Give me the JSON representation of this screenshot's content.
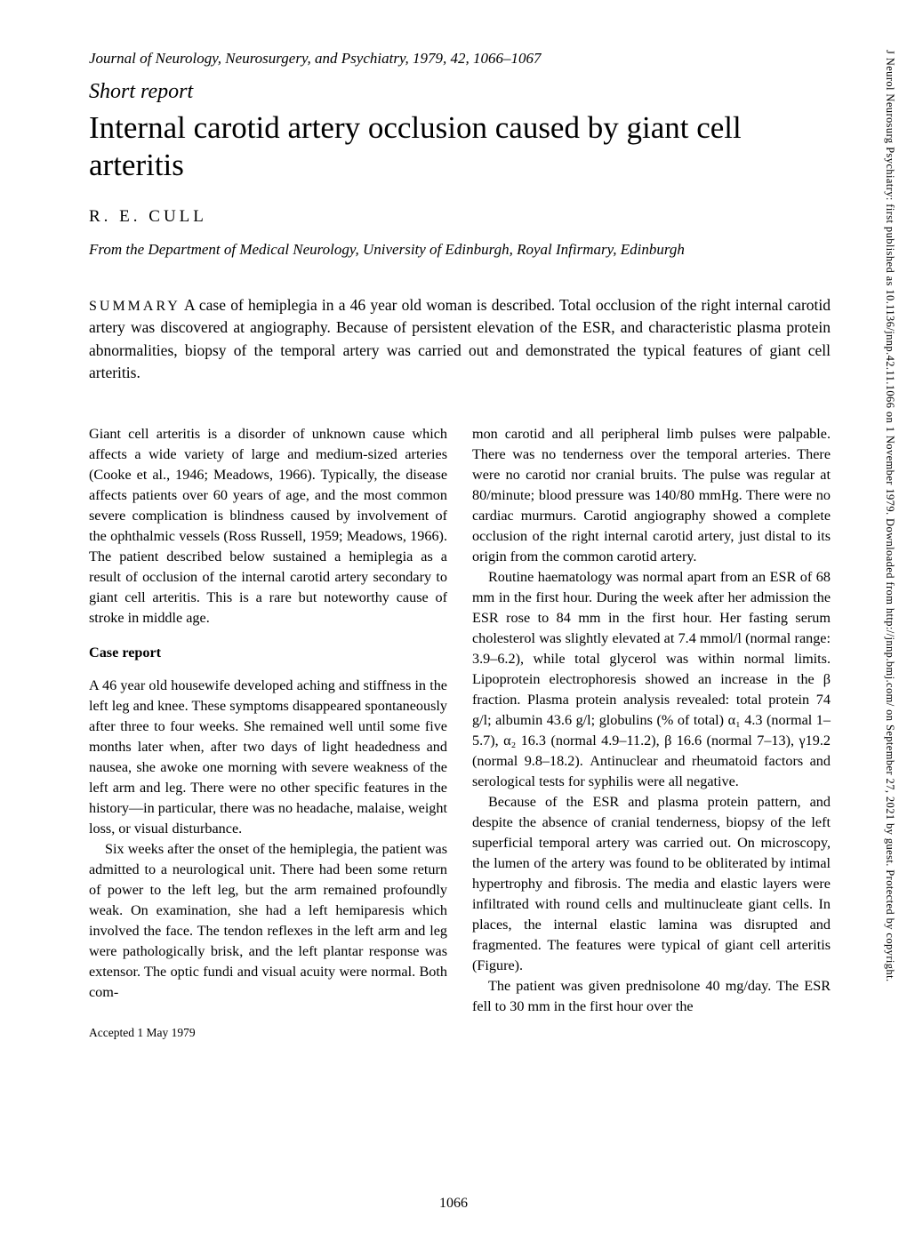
{
  "right_margin_note": "J Neurol Neurosurg Psychiatry: first published as 10.1136/jnnp.42.11.1066 on 1 November 1979. Downloaded from http://jnnp.bmj.com/ on September 27, 2021 by guest. Protected by copyright.",
  "journal_ref": "Journal of Neurology, Neurosurgery, and Psychiatry, 1979, 42, 1066–1067",
  "short_report": "Short report",
  "title": "Internal carotid artery occlusion caused by giant cell arteritis",
  "author": "R. E. CULL",
  "affiliation": "From the Department of Medical Neurology, University of Edinburgh, Royal Infirmary, Edinburgh",
  "summary_label": "SUMMARY",
  "summary_text": " A case of hemiplegia in a 46 year old woman is described. Total occlusion of the right internal carotid artery was discovered at angiography. Because of persistent elevation of the ESR, and characteristic plasma protein abnormalities, biopsy of the temporal artery was carried out and demonstrated the typical features of giant cell arteritis.",
  "left_col": {
    "intro": "Giant cell arteritis is a disorder of unknown cause which affects a wide variety of large and medium-sized arteries (Cooke et al., 1946; Meadows, 1966). Typically, the disease affects patients over 60 years of age, and the most common severe complication is blindness caused by involvement of the ophthalmic vessels (Ross Russell, 1959; Meadows, 1966). The patient described below sustained a hemiplegia as a result of occlusion of the internal carotid artery secondary to giant cell arteritis. This is a rare but noteworthy cause of stroke in middle age.",
    "case_head": "Case report",
    "case_p1": "A 46 year old housewife developed aching and stiffness in the left leg and knee. These symptoms disappeared spontaneously after three to four weeks. She remained well until some five months later when, after two days of light headedness and nausea, she awoke one morning with severe weakness of the left arm and leg. There were no other specific features in the history—in particular, there was no headache, malaise, weight loss, or visual disturbance.",
    "case_p2": "Six weeks after the onset of the hemiplegia, the patient was admitted to a neurological unit. There had been some return of power to the left leg, but the arm remained profoundly weak. On examination, she had a left hemiparesis which involved the face. The tendon reflexes in the left arm and leg were pathologically brisk, and the left plantar response was extensor. The optic fundi and visual acuity were normal. Both com-",
    "accepted": "Accepted 1 May 1979"
  },
  "right_col": {
    "p1": "mon carotid and all peripheral limb pulses were palpable. There was no tenderness over the temporal arteries. There were no carotid nor cranial bruits. The pulse was regular at 80/minute; blood pressure was 140/80 mmHg. There were no cardiac murmurs. Carotid angiography showed a complete occlusion of the right internal carotid artery, just distal to its origin from the common carotid artery.",
    "p2": "Routine haematology was normal apart from an ESR of 68 mm in the first hour. During the week after her admission the ESR rose to 84 mm in the first hour. Her fasting serum cholesterol was slightly elevated at 7.4 mmol/l (normal range: 3.9–6.2), while total glycerol was within normal limits. Lipoprotein electrophoresis showed an increase in the β fraction. Plasma protein analysis revealed: total protein 74 g/l; albumin 43.6 g/l; globulins (% of total) α₁ 4.3 (normal 1–5.7), α₂ 16.3 (normal 4.9–11.2), β 16.6 (normal 7–13), γ19.2 (normal 9.8–18.2). Antinuclear and rheumatoid factors and serological tests for syphilis were all negative.",
    "p3": "Because of the ESR and plasma protein pattern, and despite the absence of cranial tenderness, biopsy of the left superficial temporal artery was carried out. On microscopy, the lumen of the artery was found to be obliterated by intimal hypertrophy and fibrosis. The media and elastic layers were infiltrated with round cells and multinucleate giant cells. In places, the internal elastic lamina was disrupted and fragmented. The features were typical of giant cell arteritis (Figure).",
    "p4": "The patient was given prednisolone 40 mg/day. The ESR fell to 30 mm in the first hour over the"
  },
  "page_number": "1066"
}
